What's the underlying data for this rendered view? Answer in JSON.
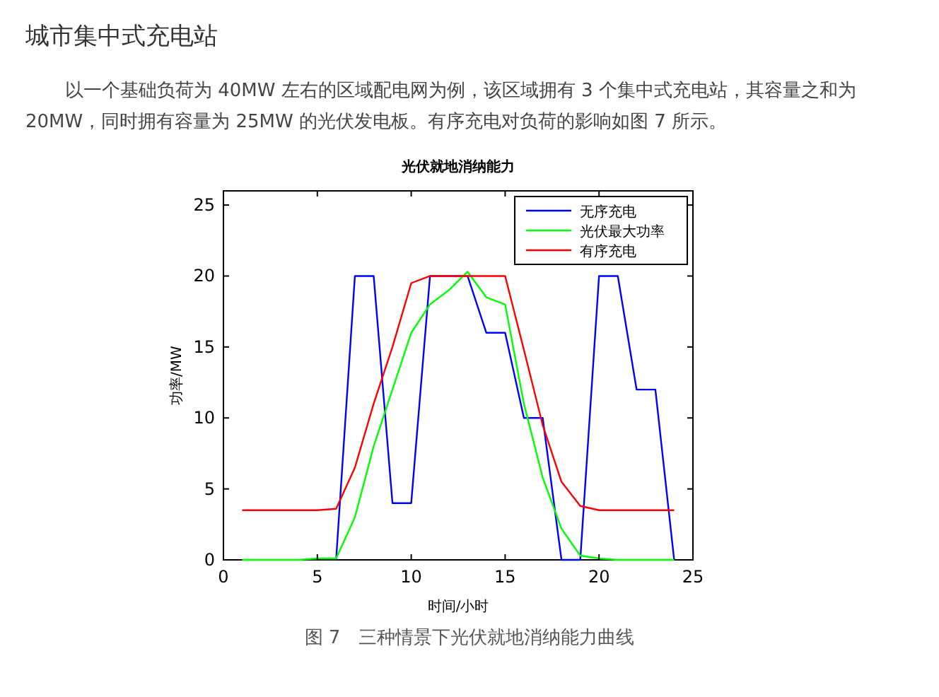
{
  "chart_data": {
    "type": "line",
    "title": "光伏就地消纳能力",
    "xlabel": "时间/小时",
    "ylabel": "功率/MW",
    "annotations": [
      "城市集中式充电站",
      "以一个基础负荷为 40MW 左右的区域配电网为例，该区域拥有 3 个集中式充电站，其容量之和为 20MW，同时拥有容量为 25MW 的光伏发电板。有序充电对负荷的影响如图 7 所示。",
      "图 7　三种情景下光伏就地消纳能力曲线"
    ],
    "x": [
      1,
      2,
      3,
      4,
      5,
      6,
      7,
      8,
      9,
      10,
      11,
      12,
      13,
      14,
      15,
      16,
      17,
      18,
      19,
      20,
      21,
      22,
      23,
      24
    ],
    "series": [
      {
        "name": "无序充电",
        "color": "#0000ff",
        "values": [
          null,
          null,
          null,
          null,
          null,
          0,
          20,
          20,
          4,
          4,
          20,
          20,
          20,
          16,
          16,
          10,
          10,
          0,
          0,
          20,
          20,
          12,
          12,
          0
        ]
      },
      {
        "name": "光伏最大功率",
        "color": "#00ff00",
        "values": [
          0,
          0,
          0,
          0,
          0.1,
          0.1,
          3,
          8,
          12,
          16,
          18,
          19,
          20.3,
          18.5,
          18,
          11,
          5.8,
          2.2,
          0.3,
          0.1,
          0,
          0,
          0,
          0
        ]
      },
      {
        "name": "有序充电",
        "color": "#ff0000",
        "values": [
          3.5,
          3.5,
          3.5,
          3.5,
          3.5,
          3.6,
          6.5,
          11,
          15,
          19.5,
          20,
          20,
          20,
          20,
          20,
          14.8,
          9.5,
          5.5,
          3.8,
          3.5,
          3.5,
          3.5,
          3.5,
          3.5
        ]
      }
    ],
    "xlim": [
      0,
      25
    ],
    "ylim": [
      0,
      26
    ],
    "xticks": [
      0,
      5,
      10,
      15,
      20,
      25
    ],
    "yticks": [
      0,
      5,
      10,
      15,
      20,
      25
    ],
    "grid": false,
    "legend": "top right",
    "marker": "none",
    "line_style": "solid"
  }
}
